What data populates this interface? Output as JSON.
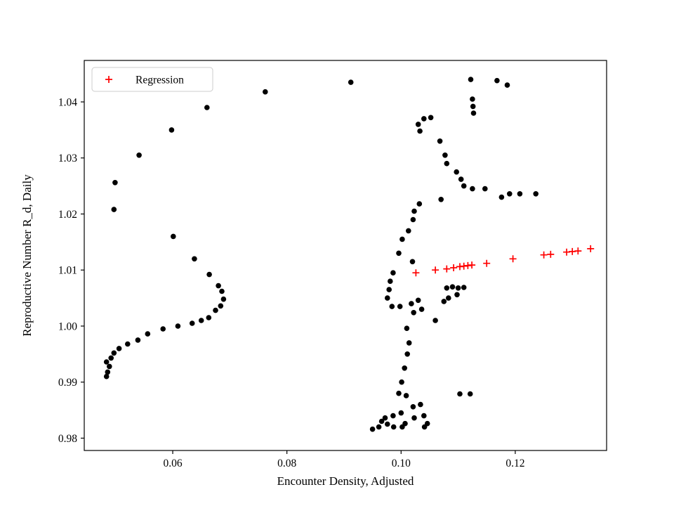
{
  "figure": {
    "background": "#ffffff"
  },
  "chart_data": {
    "type": "scatter",
    "title": "",
    "xlabel": "Encounter Density, Adjusted",
    "ylabel": "Reproductive Number R_d, Daily",
    "xlim": [
      0.0445,
      0.136
    ],
    "ylim": [
      0.9778,
      1.0474
    ],
    "xticks": [
      0.06,
      0.08,
      0.1,
      0.12
    ],
    "xtick_labels": [
      "0.06",
      "0.08",
      "0.10",
      "0.12"
    ],
    "yticks": [
      0.98,
      0.99,
      1.0,
      1.01,
      1.02,
      1.03,
      1.04
    ],
    "ytick_labels": [
      "0.98",
      "0.99",
      "1.00",
      "1.01",
      "1.02",
      "1.03",
      "1.04"
    ],
    "grid": false,
    "legend": {
      "position": "upper left",
      "entries": [
        {
          "label": "Regression",
          "marker": "plus",
          "color": "#ff0000"
        }
      ]
    },
    "colors": {
      "scatter": "#000000",
      "regression": "#ff0000",
      "frame": "#000000",
      "legend_border": "#cccccc"
    },
    "series": [
      {
        "name": "observations",
        "marker": "circle",
        "color": "#000000",
        "points": [
          [
            0.0484,
            0.991
          ],
          [
            0.0486,
            0.9918
          ],
          [
            0.0489,
            0.9928
          ],
          [
            0.0484,
            0.9936
          ],
          [
            0.0492,
            0.9943
          ],
          [
            0.0497,
            0.9952
          ],
          [
            0.0506,
            0.996
          ],
          [
            0.0521,
            0.9968
          ],
          [
            0.0539,
            0.9975
          ],
          [
            0.0556,
            0.9986
          ],
          [
            0.0583,
            0.9995
          ],
          [
            0.0609,
            1.0
          ],
          [
            0.0634,
            1.0005
          ],
          [
            0.065,
            1.001
          ],
          [
            0.0663,
            1.0015
          ],
          [
            0.0675,
            1.0028
          ],
          [
            0.0684,
            1.0036
          ],
          [
            0.0689,
            1.0048
          ],
          [
            0.0686,
            1.0062
          ],
          [
            0.068,
            1.0072
          ],
          [
            0.0664,
            1.0092
          ],
          [
            0.0638,
            1.012
          ],
          [
            0.0601,
            1.016
          ],
          [
            0.0497,
            1.0208
          ],
          [
            0.0499,
            1.0256
          ],
          [
            0.0541,
            1.0305
          ],
          [
            0.0598,
            1.035
          ],
          [
            0.066,
            1.039
          ],
          [
            0.0762,
            1.0418
          ],
          [
            0.0912,
            1.0435
          ],
          [
            0.1122,
            1.044
          ],
          [
            0.1168,
            1.0438
          ],
          [
            0.1186,
            1.043
          ],
          [
            0.1125,
            1.0405
          ],
          [
            0.1126,
            1.0392
          ],
          [
            0.1127,
            1.038
          ],
          [
            0.104,
            1.037
          ],
          [
            0.1052,
            1.0372
          ],
          [
            0.103,
            1.036
          ],
          [
            0.1033,
            1.0348
          ],
          [
            0.1068,
            1.033
          ],
          [
            0.1077,
            1.0305
          ],
          [
            0.108,
            1.029
          ],
          [
            0.1097,
            1.0275
          ],
          [
            0.1105,
            1.0262
          ],
          [
            0.111,
            1.025
          ],
          [
            0.1125,
            1.0245
          ],
          [
            0.1147,
            1.0245
          ],
          [
            0.1176,
            1.023
          ],
          [
            0.119,
            1.0236
          ],
          [
            0.1208,
            1.0236
          ],
          [
            0.1236,
            1.0236
          ],
          [
            0.107,
            1.0226
          ],
          [
            0.1032,
            1.0218
          ],
          [
            0.1023,
            1.0205
          ],
          [
            0.1021,
            1.019
          ],
          [
            0.1013,
            1.017
          ],
          [
            0.1002,
            1.0155
          ],
          [
            0.0996,
            1.013
          ],
          [
            0.102,
            1.0115
          ],
          [
            0.0986,
            1.0095
          ],
          [
            0.0981,
            1.008
          ],
          [
            0.0979,
            1.0065
          ],
          [
            0.108,
            1.0068
          ],
          [
            0.109,
            1.007
          ],
          [
            0.11,
            1.0068
          ],
          [
            0.111,
            1.0069
          ],
          [
            0.1098,
            1.0056
          ],
          [
            0.1083,
            1.005
          ],
          [
            0.1075,
            1.0044
          ],
          [
            0.0976,
            1.005
          ],
          [
            0.0984,
            1.0035
          ],
          [
            0.0998,
            1.0035
          ],
          [
            0.1018,
            1.004
          ],
          [
            0.103,
            1.0046
          ],
          [
            0.1036,
            1.003
          ],
          [
            0.1022,
            1.0024
          ],
          [
            0.106,
            1.001
          ],
          [
            0.101,
            0.9996
          ],
          [
            0.1014,
            0.997
          ],
          [
            0.1011,
            0.995
          ],
          [
            0.1006,
            0.9925
          ],
          [
            0.1001,
            0.99
          ],
          [
            0.0996,
            0.988
          ],
          [
            0.1009,
            0.9876
          ],
          [
            0.1103,
            0.9879
          ],
          [
            0.1121,
            0.9879
          ],
          [
            0.1034,
            0.986
          ],
          [
            0.1021,
            0.9856
          ],
          [
            0.1,
            0.9845
          ],
          [
            0.0986,
            0.984
          ],
          [
            0.0972,
            0.9836
          ],
          [
            0.0966,
            0.983
          ],
          [
            0.0976,
            0.9825
          ],
          [
            0.0961,
            0.982
          ],
          [
            0.095,
            0.9816
          ],
          [
            0.0987,
            0.982
          ],
          [
            0.1002,
            0.982
          ],
          [
            0.1007,
            0.9826
          ],
          [
            0.1023,
            0.9836
          ],
          [
            0.104,
            0.984
          ],
          [
            0.1046,
            0.9826
          ],
          [
            0.1041,
            0.982
          ]
        ]
      },
      {
        "name": "Regression",
        "marker": "plus",
        "color": "#ff0000",
        "points": [
          [
            0.1026,
            1.0095
          ],
          [
            0.106,
            1.01
          ],
          [
            0.108,
            1.0102
          ],
          [
            0.1092,
            1.0104
          ],
          [
            0.1103,
            1.0106
          ],
          [
            0.111,
            1.0107
          ],
          [
            0.1117,
            1.0108
          ],
          [
            0.1124,
            1.0109
          ],
          [
            0.115,
            1.0112
          ],
          [
            0.1196,
            1.012
          ],
          [
            0.125,
            1.0127
          ],
          [
            0.1262,
            1.0128
          ],
          [
            0.129,
            1.0132
          ],
          [
            0.13,
            1.0133
          ],
          [
            0.131,
            1.0134
          ],
          [
            0.1332,
            1.0138
          ]
        ]
      }
    ]
  }
}
